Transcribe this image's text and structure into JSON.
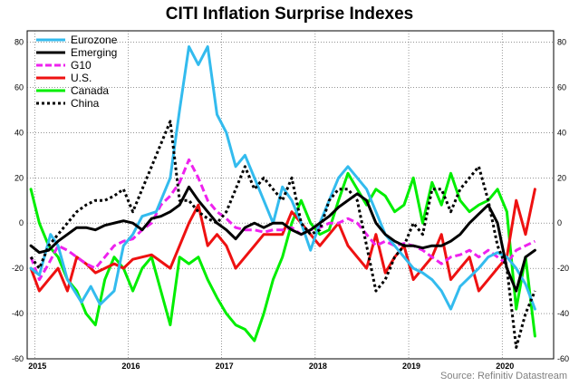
{
  "chart_data": {
    "type": "line",
    "title": "CITI Inflation Surprise Indexes",
    "source": "Source: Refinitiv Datastream",
    "ylim": [
      -60,
      85
    ],
    "yticks": [
      80,
      60,
      40,
      20,
      0,
      -20,
      -40,
      -60
    ],
    "xlim": [
      2014.92,
      2020.55
    ],
    "xtick_labels": [
      "2015",
      "2016",
      "2017",
      "2018",
      "2019",
      "2020"
    ],
    "xtick_positions": [
      2015,
      2016,
      2017,
      2018,
      2019,
      2020
    ],
    "legend_position": "top-left",
    "grid": true,
    "series": [
      {
        "name": "Eurozone",
        "color": "#33bbee",
        "style": "solid",
        "x": [
          2014.96,
          2015.05,
          2015.17,
          2015.25,
          2015.35,
          2015.5,
          2015.6,
          2015.7,
          2015.85,
          2015.95,
          2016.05,
          2016.15,
          2016.3,
          2016.45,
          2016.55,
          2016.65,
          2016.75,
          2016.85,
          2016.95,
          2017.05,
          2017.15,
          2017.25,
          2017.35,
          2017.45,
          2017.55,
          2017.65,
          2017.75,
          2017.85,
          2017.95,
          2018.05,
          2018.15,
          2018.25,
          2018.35,
          2018.45,
          2018.55,
          2018.65,
          2018.75,
          2018.85,
          2018.95,
          2019.05,
          2019.15,
          2019.25,
          2019.35,
          2019.45,
          2019.55,
          2019.65,
          2019.75,
          2019.85,
          2019.95,
          2020.05,
          2020.15,
          2020.25,
          2020.35
        ],
        "y": [
          -20,
          -23,
          -5,
          -10,
          -25,
          -35,
          -28,
          -36,
          -30,
          -10,
          -5,
          3,
          5,
          20,
          50,
          78,
          70,
          78,
          48,
          40,
          25,
          30,
          20,
          10,
          0,
          16,
          10,
          0,
          -12,
          0,
          10,
          20,
          25,
          20,
          15,
          5,
          -5,
          -10,
          -15,
          -20,
          -22,
          -25,
          -30,
          -38,
          -28,
          -24,
          -20,
          -15,
          -13,
          -15,
          -20,
          -27,
          -38
        ]
      },
      {
        "name": "Emerging",
        "color": "#000000",
        "style": "solid",
        "x": [
          2014.96,
          2015.05,
          2015.15,
          2015.25,
          2015.35,
          2015.45,
          2015.55,
          2015.65,
          2015.75,
          2015.85,
          2015.95,
          2016.05,
          2016.15,
          2016.25,
          2016.35,
          2016.45,
          2016.55,
          2016.65,
          2016.75,
          2016.85,
          2016.95,
          2017.05,
          2017.15,
          2017.25,
          2017.35,
          2017.45,
          2017.55,
          2017.65,
          2017.75,
          2017.85,
          2017.95,
          2018.05,
          2018.15,
          2018.25,
          2018.35,
          2018.45,
          2018.55,
          2018.65,
          2018.75,
          2018.85,
          2018.95,
          2019.05,
          2019.15,
          2019.25,
          2019.35,
          2019.45,
          2019.55,
          2019.65,
          2019.75,
          2019.85,
          2019.95,
          2020.05,
          2020.15,
          2020.25,
          2020.35
        ],
        "y": [
          -10,
          -13,
          -12,
          -8,
          -5,
          -2,
          -2,
          -3,
          -1,
          0,
          1,
          0,
          -3,
          2,
          3,
          5,
          8,
          16,
          10,
          5,
          0,
          -3,
          -7,
          -2,
          0,
          -2,
          0,
          0,
          -3,
          -5,
          -3,
          0,
          3,
          7,
          10,
          13,
          10,
          0,
          -5,
          -8,
          -10,
          -10,
          -11,
          -10,
          -10,
          -8,
          -5,
          0,
          4,
          8,
          0,
          -20,
          -30,
          -15,
          -12
        ]
      },
      {
        "name": "G10",
        "color": "#ee22ee",
        "style": "dashed",
        "x": [
          2014.96,
          2015.05,
          2015.15,
          2015.25,
          2015.35,
          2015.45,
          2015.55,
          2015.65,
          2015.75,
          2015.85,
          2015.95,
          2016.05,
          2016.15,
          2016.25,
          2016.35,
          2016.45,
          2016.55,
          2016.65,
          2016.75,
          2016.85,
          2016.95,
          2017.05,
          2017.15,
          2017.25,
          2017.35,
          2017.45,
          2017.55,
          2017.65,
          2017.75,
          2017.85,
          2017.95,
          2018.05,
          2018.15,
          2018.25,
          2018.35,
          2018.45,
          2018.55,
          2018.65,
          2018.75,
          2018.85,
          2018.95,
          2019.05,
          2019.15,
          2019.25,
          2019.35,
          2019.45,
          2019.55,
          2019.65,
          2019.75,
          2019.85,
          2019.95,
          2020.05,
          2020.15,
          2020.25,
          2020.35
        ],
        "y": [
          -15,
          -25,
          -18,
          -10,
          -12,
          -15,
          -18,
          -20,
          -15,
          -10,
          -8,
          -7,
          -3,
          0,
          8,
          12,
          18,
          28,
          20,
          10,
          5,
          2,
          -2,
          -3,
          -3,
          -4,
          -3,
          -3,
          -2,
          -5,
          -3,
          -2,
          0,
          0,
          2,
          0,
          -5,
          -10,
          -8,
          -10,
          -9,
          -10,
          -12,
          -15,
          -18,
          -15,
          -14,
          -12,
          -15,
          -12,
          -15,
          -18,
          -12,
          -10,
          -8
        ]
      },
      {
        "name": "U.S.",
        "color": "#ee1111",
        "style": "solid",
        "x": [
          2014.96,
          2015.05,
          2015.15,
          2015.25,
          2015.35,
          2015.45,
          2015.55,
          2015.65,
          2015.75,
          2015.85,
          2015.95,
          2016.05,
          2016.15,
          2016.25,
          2016.35,
          2016.45,
          2016.55,
          2016.65,
          2016.75,
          2016.85,
          2016.95,
          2017.05,
          2017.15,
          2017.25,
          2017.35,
          2017.45,
          2017.55,
          2017.65,
          2017.75,
          2017.85,
          2017.95,
          2018.05,
          2018.15,
          2018.25,
          2018.35,
          2018.45,
          2018.55,
          2018.65,
          2018.75,
          2018.85,
          2018.95,
          2019.05,
          2019.15,
          2019.25,
          2019.35,
          2019.45,
          2019.55,
          2019.65,
          2019.75,
          2019.85,
          2019.95,
          2020.05,
          2020.15,
          2020.25,
          2020.35
        ],
        "y": [
          -20,
          -30,
          -25,
          -20,
          -30,
          -15,
          -18,
          -22,
          -20,
          -18,
          -20,
          -16,
          -15,
          -14,
          -17,
          -20,
          -10,
          0,
          8,
          -10,
          -5,
          -10,
          -20,
          -15,
          -10,
          -5,
          -5,
          -5,
          5,
          0,
          -5,
          -10,
          -5,
          0,
          -10,
          -15,
          -20,
          -5,
          -22,
          -15,
          -10,
          -25,
          -20,
          -15,
          -5,
          -25,
          -20,
          -15,
          -30,
          -25,
          -20,
          -15,
          10,
          -5,
          15
        ]
      },
      {
        "name": "Canada",
        "color": "#00ee00",
        "style": "solid",
        "x": [
          2014.96,
          2015.05,
          2015.15,
          2015.25,
          2015.35,
          2015.45,
          2015.55,
          2015.65,
          2015.75,
          2015.85,
          2015.95,
          2016.05,
          2016.15,
          2016.25,
          2016.35,
          2016.45,
          2016.55,
          2016.65,
          2016.75,
          2016.85,
          2016.95,
          2017.05,
          2017.15,
          2017.25,
          2017.35,
          2017.45,
          2017.55,
          2017.65,
          2017.75,
          2017.85,
          2017.95,
          2018.05,
          2018.15,
          2018.25,
          2018.35,
          2018.45,
          2018.55,
          2018.65,
          2018.75,
          2018.85,
          2018.95,
          2019.05,
          2019.15,
          2019.25,
          2019.35,
          2019.45,
          2019.55,
          2019.65,
          2019.75,
          2019.85,
          2019.95,
          2020.05,
          2020.15,
          2020.25,
          2020.35
        ],
        "y": [
          15,
          0,
          -10,
          -15,
          -25,
          -30,
          -40,
          -45,
          -25,
          -15,
          -20,
          -30,
          -20,
          -15,
          -30,
          -45,
          -15,
          -18,
          -15,
          -25,
          -33,
          -40,
          -45,
          -47,
          -52,
          -40,
          -25,
          -15,
          0,
          10,
          0,
          -5,
          -3,
          10,
          22,
          15,
          8,
          15,
          12,
          5,
          8,
          20,
          0,
          18,
          8,
          22,
          10,
          5,
          8,
          10,
          15,
          5,
          -38,
          -15,
          -50
        ]
      },
      {
        "name": "China",
        "color": "#000000",
        "style": "dotted",
        "x": [
          2014.96,
          2015.05,
          2015.15,
          2015.25,
          2015.35,
          2015.45,
          2015.55,
          2015.65,
          2015.75,
          2015.85,
          2015.95,
          2016.05,
          2016.15,
          2016.25,
          2016.35,
          2016.45,
          2016.55,
          2016.65,
          2016.75,
          2016.85,
          2016.95,
          2017.05,
          2017.15,
          2017.25,
          2017.35,
          2017.45,
          2017.55,
          2017.65,
          2017.75,
          2017.85,
          2017.95,
          2018.05,
          2018.15,
          2018.25,
          2018.35,
          2018.45,
          2018.55,
          2018.65,
          2018.75,
          2018.85,
          2018.95,
          2019.05,
          2019.15,
          2019.25,
          2019.35,
          2019.45,
          2019.55,
          2019.65,
          2019.75,
          2019.85,
          2019.95,
          2020.05,
          2020.15,
          2020.25,
          2020.35
        ],
        "y": [
          -15,
          -20,
          -10,
          -5,
          0,
          5,
          8,
          10,
          10,
          12,
          15,
          5,
          15,
          25,
          35,
          45,
          10,
          10,
          5,
          2,
          0,
          5,
          15,
          25,
          15,
          20,
          15,
          10,
          20,
          0,
          -5,
          -3,
          10,
          15,
          15,
          10,
          -10,
          -30,
          -25,
          -15,
          -10,
          0,
          -5,
          15,
          15,
          5,
          15,
          20,
          25,
          10,
          -10,
          -20,
          -55,
          -40,
          -30
        ]
      }
    ]
  }
}
